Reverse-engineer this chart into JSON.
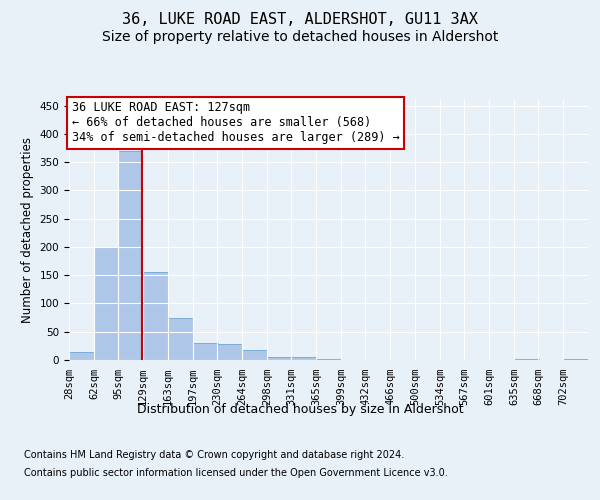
{
  "title": "36, LUKE ROAD EAST, ALDERSHOT, GU11 3AX",
  "subtitle": "Size of property relative to detached houses in Aldershot",
  "xlabel": "Distribution of detached houses by size in Aldershot",
  "ylabel": "Number of detached properties",
  "bin_labels": [
    "28sqm",
    "62sqm",
    "95sqm",
    "129sqm",
    "163sqm",
    "197sqm",
    "230sqm",
    "264sqm",
    "298sqm",
    "331sqm",
    "365sqm",
    "399sqm",
    "432sqm",
    "466sqm",
    "500sqm",
    "534sqm",
    "567sqm",
    "601sqm",
    "635sqm",
    "668sqm",
    "702sqm"
  ],
  "bin_edges": [
    28,
    62,
    95,
    129,
    163,
    197,
    230,
    264,
    298,
    331,
    365,
    399,
    432,
    466,
    500,
    534,
    567,
    601,
    635,
    668,
    702
  ],
  "bar_heights": [
    15,
    200,
    370,
    155,
    75,
    30,
    28,
    18,
    5,
    5,
    1,
    0,
    0,
    0,
    0,
    0,
    0,
    0,
    1,
    0,
    1
  ],
  "bar_color": "#aec6e8",
  "bar_edge_color": "#5b9bd5",
  "vline_x": 127,
  "vline_color": "#cc0000",
  "annotation_line1": "36 LUKE ROAD EAST: 127sqm",
  "annotation_line2": "← 66% of detached houses are smaller (568)",
  "annotation_line3": "34% of semi-detached houses are larger (289) →",
  "annotation_box_edgecolor": "#cc0000",
  "ylim": [
    0,
    460
  ],
  "yticks": [
    0,
    50,
    100,
    150,
    200,
    250,
    300,
    350,
    400,
    450
  ],
  "bg_color": "#e8f0f8",
  "grid_color": "#ffffff",
  "title_fontsize": 11,
  "subtitle_fontsize": 10,
  "ylabel_fontsize": 8.5,
  "xlabel_fontsize": 9,
  "tick_fontsize": 7.5,
  "annotation_fontsize": 8.5,
  "footer_fontsize": 7,
  "footer_line1": "Contains HM Land Registry data © Crown copyright and database right 2024.",
  "footer_line2": "Contains public sector information licensed under the Open Government Licence v3.0."
}
